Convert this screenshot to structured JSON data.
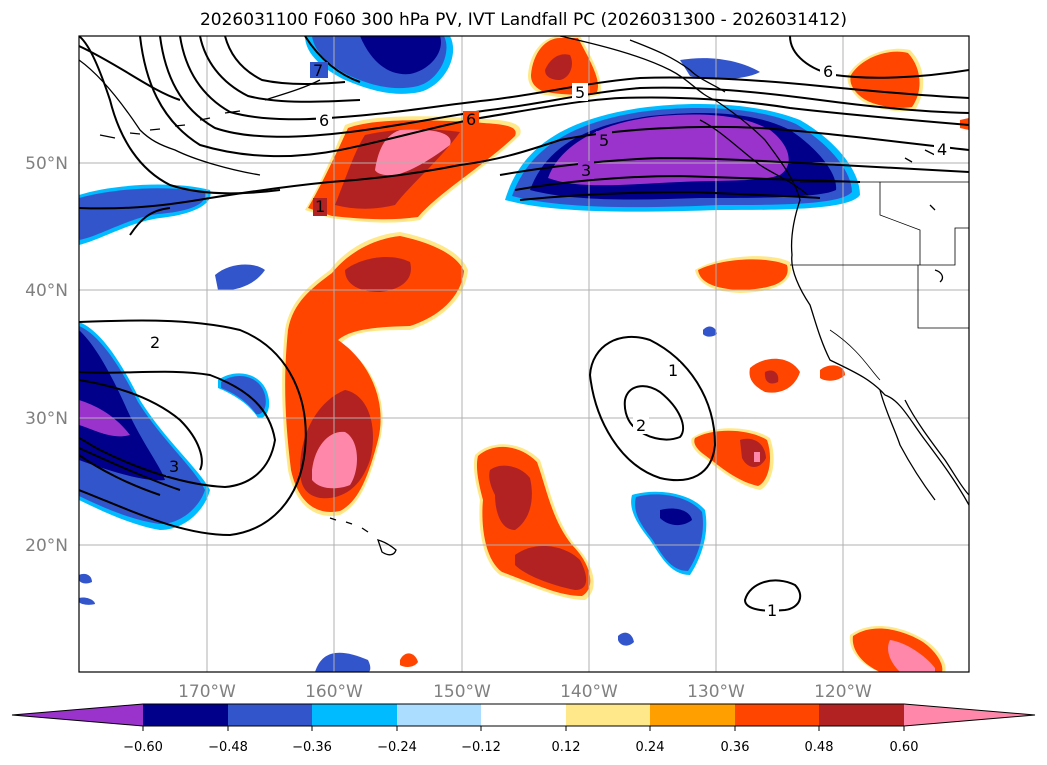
{
  "title": "2026031100 F060 300 hPa PV, IVT Landfall PC (2026031300 - 2026031412)",
  "lat_labels": [
    "50°N",
    "40°N",
    "30°N",
    "20°N"
  ],
  "lon_labels": [
    "170°W",
    "160°W",
    "150°W",
    "140°W",
    "130°W",
    "120°W"
  ],
  "contour_labels": [
    "7",
    "6",
    "6",
    "5",
    "5",
    "4",
    "3",
    "6",
    "1",
    "2",
    "3",
    "1",
    "2",
    "1"
  ],
  "colorbar": {
    "ticks": [
      "−0.60",
      "−0.48",
      "−0.36",
      "−0.24",
      "−0.12",
      "0.12",
      "0.24",
      "0.36",
      "0.48",
      "0.60"
    ],
    "colors": [
      "#9933cc",
      "#00008b",
      "#3355cc",
      "#00bbff",
      "#aaddff",
      "#ffffff",
      "#ffe88a",
      "#ffa000",
      "#ff4500",
      "#b22222",
      "#ff88aa"
    ],
    "extend": "both"
  },
  "fill_colors": {
    "neg_strong": "#9933cc",
    "neg_dark": "#00008b",
    "neg_mid": "#3355cc",
    "neg_light": "#00bbff",
    "pos_orange": "#ff4500",
    "pos_red": "#b22222",
    "pos_pink": "#ff88aa",
    "pos_yellow": "#ffe88a"
  },
  "map_extent": {
    "lon": [
      -180,
      -110
    ],
    "lat": [
      10,
      60
    ]
  },
  "grid": true
}
